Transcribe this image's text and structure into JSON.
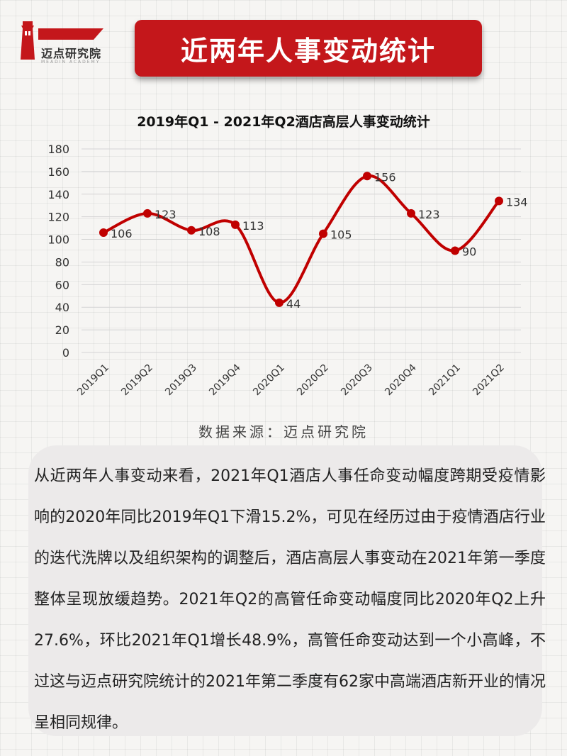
{
  "brand": {
    "name": "迈点研究院",
    "sub": "MEADIN ACADEMY"
  },
  "page_title": "近两年人事变动统计",
  "source_note": "数据来源：迈点研究院",
  "body_text": "从近两年人事变动来看，2021年Q1酒店人事任命变动幅度跨期受疫情影响的2020年同比2019年Q1下滑15.2%，可见在经历过由于疫情酒店行业的迭代洗牌以及组织架构的调整后，酒店高层人事变动在2021年第一季度整体呈现放缓趋势。2021年Q2的高管任命变动幅度同比2020年Q2上升27.6%，环比2021年Q1增长48.9%，高管任命变动达到一个小高峰，不过这与迈点研究院统计的2021年第二季度有62家中高端酒店新开业的情况呈相同规律。",
  "colors": {
    "accent": "#c4171b",
    "line": "#c00000"
  },
  "chart_data": {
    "type": "line",
    "title": "2019年Q1 - 2021年Q2酒店高层人事变动统计",
    "categories": [
      "2019Q1",
      "2019Q2",
      "2019Q3",
      "2019Q4",
      "2020Q1",
      "2020Q2",
      "2020Q3",
      "2020Q4",
      "2021Q1",
      "2021Q2"
    ],
    "series": [
      {
        "values": [
          106,
          123,
          108,
          113,
          44,
          105,
          156,
          123,
          90,
          134
        ]
      }
    ],
    "data_labels": [
      "106",
      "123",
      "108",
      "113",
      "44",
      "105",
      "156",
      "123",
      "90",
      "134"
    ],
    "ylim": [
      0,
      180
    ],
    "y_ticks": [
      "0",
      "20",
      "40",
      "60",
      "80",
      "100",
      "120",
      "140",
      "160",
      "180"
    ],
    "smooth": true,
    "grid": true,
    "legend": "none"
  }
}
